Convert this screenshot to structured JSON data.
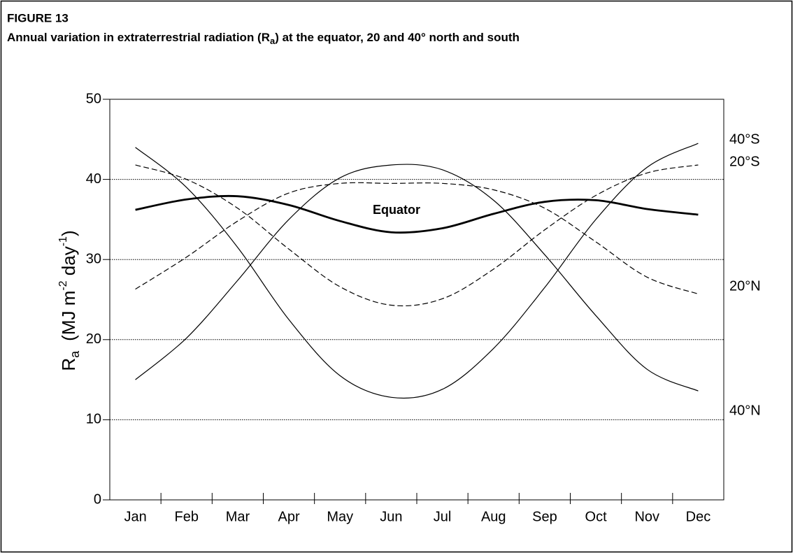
{
  "chart_data": {
    "type": "line",
    "figure_label": "FIGURE 13",
    "title_parts": [
      "Annual variation in extraterrestrial radiation (R",
      "a",
      ") at the equator, 20 and 40° north and south"
    ],
    "y_label_parts": [
      "R",
      "a",
      "(MJ  m",
      "-2",
      "  day",
      "-1",
      ")"
    ],
    "categories": [
      "Jan",
      "Feb",
      "Mar",
      "Apr",
      "May",
      "Jun",
      "Jul",
      "Aug",
      "Sep",
      "Oct",
      "Nov",
      "Dec"
    ],
    "series": [
      {
        "name": "40°S",
        "color": "#000000",
        "style": "solid",
        "values": [
          44.0,
          39.0,
          31.5,
          22.5,
          15.5,
          12.8,
          13.8,
          18.9,
          26.5,
          35.0,
          41.5,
          44.5
        ]
      },
      {
        "name": "20°S",
        "color": "#000000",
        "style": "dashed",
        "values": [
          41.8,
          40.0,
          36.4,
          31.3,
          26.6,
          24.3,
          25.1,
          28.8,
          33.7,
          38.0,
          40.8,
          41.8
        ]
      },
      {
        "name": "Equator",
        "color": "#000000",
        "style": "bold",
        "values": [
          36.2,
          37.5,
          37.9,
          36.8,
          34.8,
          33.4,
          33.9,
          35.7,
          37.2,
          37.4,
          36.3,
          35.6
        ]
      },
      {
        "name": "20°N",
        "color": "#000000",
        "style": "dashed",
        "values": [
          26.3,
          30.3,
          34.8,
          38.3,
          39.5,
          39.5,
          39.5,
          38.7,
          36.4,
          32.2,
          27.8,
          25.7
        ]
      },
      {
        "name": "40°N",
        "color": "#000000",
        "style": "solid",
        "values": [
          15.0,
          20.2,
          27.4,
          35.0,
          40.2,
          41.8,
          41.2,
          37.4,
          30.6,
          23.0,
          16.3,
          13.6
        ]
      }
    ],
    "ylim": [
      0,
      50
    ],
    "yticks": [
      0,
      10,
      20,
      30,
      40,
      50
    ],
    "grid": true
  }
}
